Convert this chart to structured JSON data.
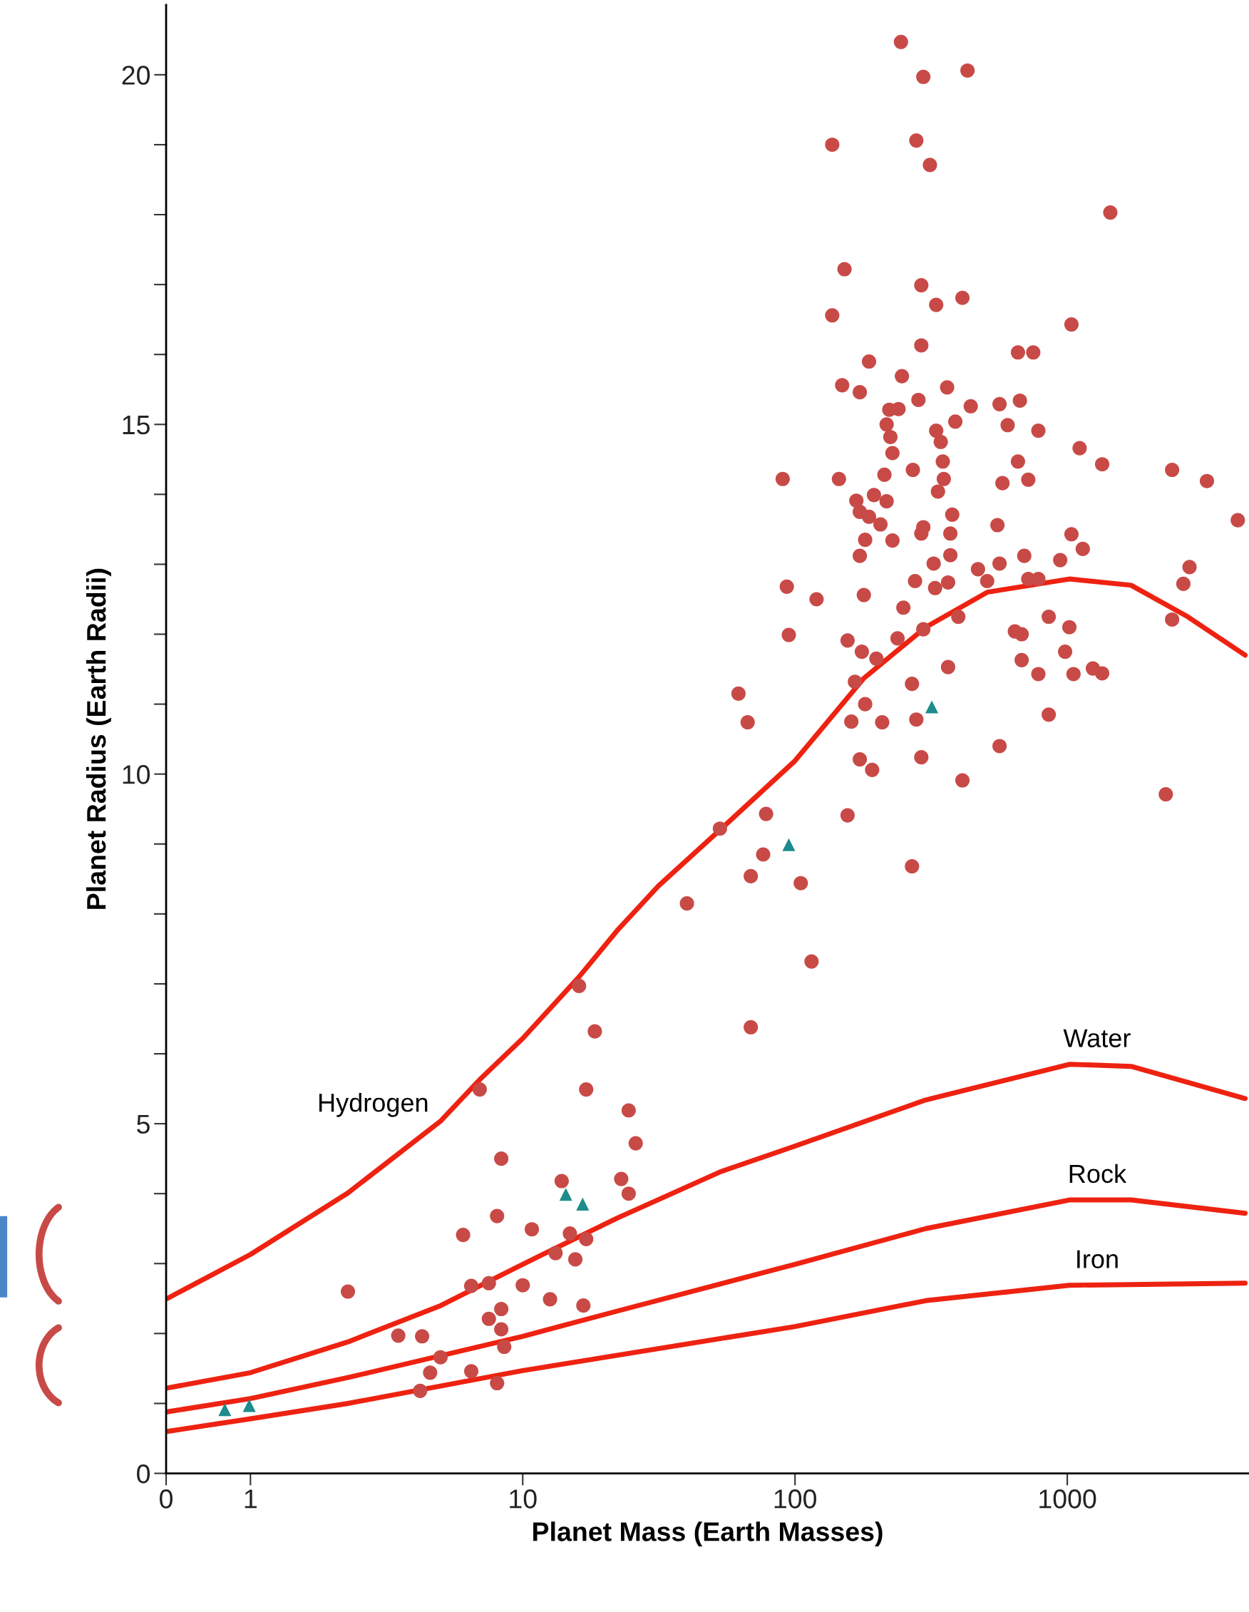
{
  "chart_data": {
    "type": "scatter",
    "xlabel": "Planet Mass (Earth Masses)",
    "ylabel": "Planet Radius (Earth Radii)",
    "log": "x",
    "grid": false,
    "legend": false,
    "xlim": [
      0.49,
      4650
    ],
    "xticks": [
      {
        "value": 0.49,
        "label": "0"
      },
      1,
      10,
      100,
      1000
    ],
    "ylim": [
      0,
      21
    ],
    "yticks": [
      0,
      {
        "value": 1,
        "label": null
      },
      {
        "value": 2,
        "label": null
      },
      {
        "value": 3,
        "label": null
      },
      {
        "value": 4,
        "label": null
      },
      5,
      {
        "value": 6,
        "label": null
      },
      {
        "value": 7,
        "label": null
      },
      {
        "value": 8,
        "label": null
      },
      {
        "value": 9,
        "label": null
      },
      10,
      {
        "value": 11,
        "label": null
      },
      {
        "value": 12,
        "label": null
      },
      {
        "value": 13,
        "label": null
      },
      {
        "value": 14,
        "label": null
      },
      15,
      {
        "value": 16,
        "label": null
      },
      {
        "value": 17,
        "label": null
      },
      {
        "value": 18,
        "label": null
      },
      {
        "value": 19,
        "label": null
      },
      20
    ],
    "series": [
      {
        "marker": "circle",
        "color": "#c84a47",
        "x": [
          245,
          296,
          430,
          137,
          279,
          313,
          1439,
          152,
          291,
          412,
          330,
          137,
          1036,
          659,
          750,
          291,
          187,
          149,
          247,
          173,
          284,
          362,
          442,
          670,
          564,
          222,
          240,
          217,
          330,
          388,
          604,
          783,
          224,
          343,
          228,
          1110,
          349,
          659,
          1343,
          271,
          90.1,
          145,
          213,
          352,
          578,
          719,
          2427,
          3258,
          168,
          195,
          217,
          335,
          173,
          187,
          206,
          378,
          4230,
          296,
          372,
          554,
          181,
          228,
          291,
          1036,
          1140,
          173,
          323,
          695,
          942,
          372,
          470,
          564,
          2812,
          276,
          327,
          365,
          508,
          719,
          783,
          2669,
          93.3,
          120,
          179,
          250,
          398,
          855,
          2427,
          296,
          642,
          1018,
          94.9,
          156,
          238,
          680,
          176,
          199,
          982,
          365,
          783,
          1054,
          1242,
          1343,
          680,
          166,
          269,
          181,
          62,
          67,
          161,
          209,
          279,
          855,
          564,
          173,
          192,
          291,
          412,
          2301,
          156,
          78.3,
          53,
          76.4,
          68.8,
          105,
          269,
          40.1,
          115,
          16.1,
          68.8,
          18.4,
          6.95,
          17.1,
          24.5,
          26,
          8.34,
          13.9,
          23,
          24.5,
          8.05,
          6.04,
          10.8,
          14.9,
          17.1,
          13.2,
          15.6,
          6.47,
          7.51,
          10,
          2.28,
          12.6,
          16.7,
          8.34,
          7.51,
          8.34,
          3.49,
          4.27,
          8.55,
          4.99,
          4.57,
          6.47,
          8.05,
          4.2
        ],
        "values": [
          20.47,
          19.97,
          20.06,
          19.0,
          19.06,
          18.71,
          18.03,
          17.22,
          16.99,
          16.81,
          16.71,
          16.56,
          16.43,
          16.03,
          16.03,
          16.13,
          15.9,
          15.56,
          15.69,
          15.46,
          15.35,
          15.53,
          15.26,
          15.34,
          15.29,
          15.21,
          15.22,
          15.0,
          14.91,
          15.04,
          14.99,
          14.91,
          14.82,
          14.75,
          14.59,
          14.66,
          14.47,
          14.47,
          14.43,
          14.35,
          14.22,
          14.22,
          14.28,
          14.22,
          14.16,
          14.21,
          14.35,
          14.19,
          13.91,
          13.99,
          13.9,
          14.04,
          13.75,
          13.68,
          13.57,
          13.71,
          13.63,
          13.53,
          13.44,
          13.56,
          13.35,
          13.34,
          13.44,
          13.43,
          13.22,
          13.12,
          13.01,
          13.12,
          13.06,
          13.13,
          12.93,
          13.01,
          12.96,
          12.76,
          12.66,
          12.74,
          12.76,
          12.79,
          12.79,
          12.72,
          12.68,
          12.5,
          12.56,
          12.38,
          12.25,
          12.25,
          12.21,
          12.07,
          12.04,
          12.1,
          11.99,
          11.91,
          11.94,
          12.0,
          11.75,
          11.65,
          11.75,
          11.53,
          11.43,
          11.43,
          11.51,
          11.44,
          11.63,
          11.32,
          11.29,
          11.0,
          11.15,
          10.74,
          10.75,
          10.74,
          10.78,
          10.85,
          10.4,
          10.21,
          10.06,
          10.24,
          9.91,
          9.71,
          9.41,
          9.43,
          9.22,
          8.85,
          8.54,
          8.44,
          8.68,
          8.15,
          7.32,
          6.97,
          6.38,
          6.32,
          5.49,
          5.49,
          5.19,
          4.72,
          4.5,
          4.18,
          4.21,
          4.0,
          3.68,
          3.41,
          3.49,
          3.43,
          3.35,
          3.15,
          3.06,
          2.68,
          2.72,
          2.69,
          2.6,
          2.49,
          2.4,
          2.35,
          2.21,
          2.06,
          1.97,
          1.96,
          1.81,
          1.66,
          1.44,
          1.46,
          1.29,
          1.18
        ]
      },
      {
        "marker": "triangle",
        "color": "#1e8c8c",
        "x": [
          0.805,
          0.99,
          14.4,
          16.6,
          94.9,
          318
        ],
        "values": [
          0.91,
          0.97,
          3.99,
          3.85,
          8.99,
          10.96
        ]
      },
      {
        "type": "line",
        "name": "Hydrogen",
        "color": "#ee2211",
        "x": [
          0.494,
          1,
          2.28,
          5,
          6.95,
          10,
          16.1,
          22.2,
          31.5,
          53,
          100,
          179,
          302,
          508,
          1018,
          1715,
          2770,
          4500
        ],
        "values": [
          2.5,
          3.13,
          4.01,
          5.04,
          5.63,
          6.22,
          7.1,
          7.76,
          8.4,
          9.2,
          10.19,
          11.37,
          12.1,
          12.6,
          12.79,
          12.7,
          12.25,
          11.7
        ]
      },
      {
        "type": "line",
        "name": "Water",
        "color": "#ee2211",
        "x": [
          0.494,
          1,
          2.28,
          5,
          10,
          22.2,
          53,
          100,
          302,
          1018,
          1715,
          4500
        ],
        "values": [
          1.22,
          1.44,
          1.88,
          2.4,
          2.99,
          3.65,
          4.31,
          4.68,
          5.34,
          5.85,
          5.82,
          5.36
        ]
      },
      {
        "type": "line",
        "name": "Rock",
        "color": "#ee2211",
        "x": [
          0.494,
          1,
          2.28,
          10,
          22.2,
          100,
          302,
          1018,
          1715,
          4500
        ],
        "values": [
          0.88,
          1.07,
          1.37,
          1.96,
          2.32,
          2.99,
          3.5,
          3.91,
          3.91,
          3.72
        ]
      },
      {
        "type": "line",
        "name": "Iron",
        "color": "#ee2211",
        "x": [
          0.494,
          1,
          2.28,
          10,
          100,
          302,
          1018,
          4500
        ],
        "values": [
          0.6,
          0.78,
          1.0,
          1.47,
          2.1,
          2.47,
          2.69,
          2.72
        ]
      }
    ]
  }
}
